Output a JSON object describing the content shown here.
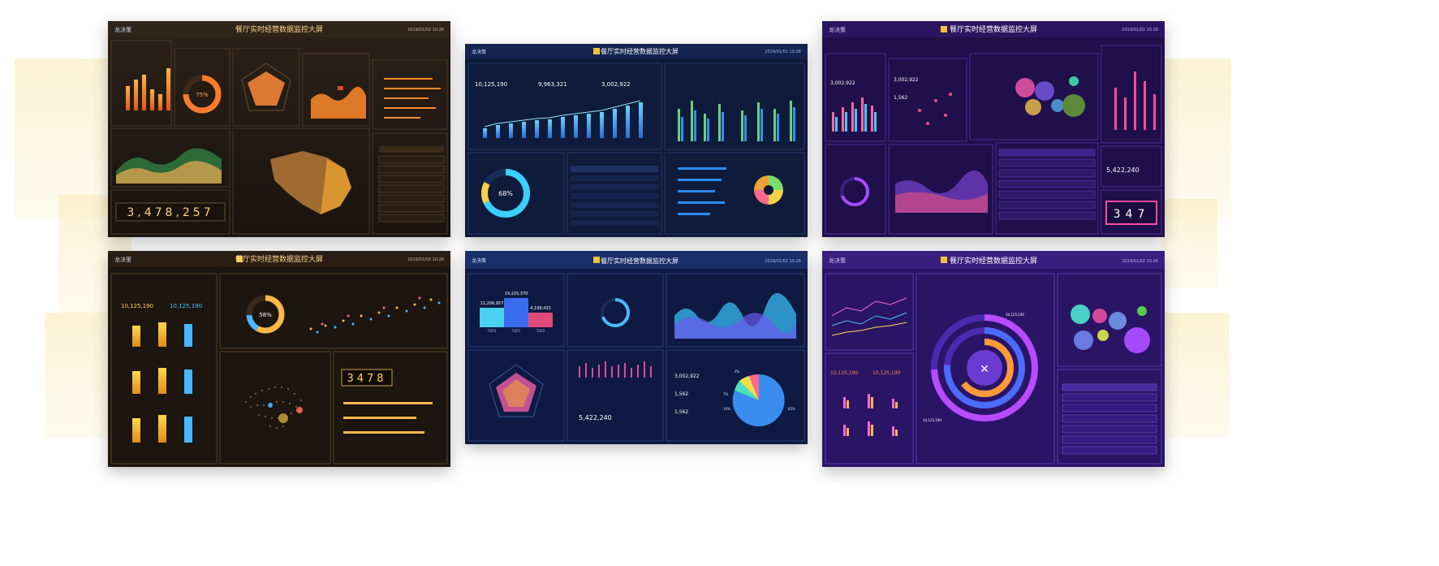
{
  "screens": [
    {
      "title": "餐厅实时经营数据监控大屏",
      "date": "2019/01/02  10:26",
      "theme": "orange",
      "logo": "龙决策",
      "big_digits": "3,478,257",
      "donut_percent": "75%"
    },
    {
      "title": "餐厅实时经营数据监控大屏",
      "date": "2019/01/02  10:26",
      "theme": "blue",
      "logo": "龙决策",
      "kpis": [
        "10,125,190",
        "9,963,321",
        "3,002,922"
      ],
      "donut_percent": "68%"
    },
    {
      "title": "餐厅实时经营数据监控大屏",
      "date": "2019/01/02  10:26",
      "theme": "purple",
      "logo": "龙决策",
      "kpis": [
        "3,002,922",
        "3,002,922",
        "1,562"
      ],
      "big_value": "5,422,240",
      "digits": "347"
    },
    {
      "title": "餐厅实时经营数据监控大屏",
      "date": "2019/01/02  10:26",
      "theme": "orange2",
      "logo": "龙决策",
      "kpis": [
        "10,125,190",
        "10,125,190"
      ],
      "donut_percent": "58%",
      "digits": "3478"
    },
    {
      "title": "餐厅实时经营数据监控大屏",
      "date": "2019/01/02  10:26",
      "theme": "blue2",
      "logo": "龙决策",
      "bars": [
        "11,206,957",
        "19,225,370",
        "4,199,433"
      ],
      "bar_labels": [
        "TOP3",
        "TOP1",
        "TOP2"
      ],
      "kpis": [
        "3,002,922",
        "1,562",
        "1,562"
      ],
      "big_value": "5,422,240",
      "pie_labels": [
        "2%",
        "7%",
        "10%",
        "65%"
      ]
    },
    {
      "title": "餐厅实时经营数据监控大屏",
      "date": "2019/01/02  10:26",
      "theme": "violet",
      "logo": "龙决策",
      "kpis": [
        "10,125,190",
        "10,125,190"
      ],
      "ring_values": [
        "10,125,190",
        "10,125,190"
      ]
    }
  ]
}
